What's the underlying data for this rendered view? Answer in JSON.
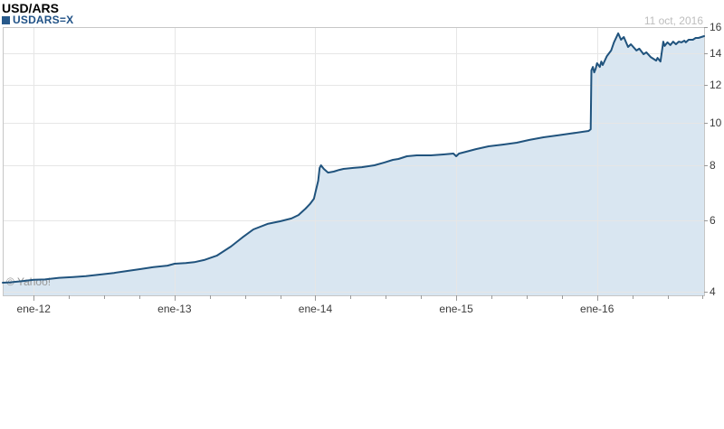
{
  "header": {
    "title": "USD/ARS",
    "date": "11 oct, 2016"
  },
  "legend": {
    "symbol": "USDARS=X"
  },
  "watermark": "© Yahoo!",
  "colors": {
    "line": "#20537d",
    "fill": "#d9e6f1",
    "grid": "#e6e6e6",
    "frame": "#c6c6c6",
    "tick": "#999999",
    "axis_text": "#3c3c3c",
    "title_text": "#000000",
    "legend_text": "#1f5186",
    "legend_swatch": "#27598a",
    "date_text": "#bdbdbd",
    "watermark_text": "#979797"
  },
  "chart_data": {
    "type": "area",
    "title": "USD/ARS",
    "legend_entries": [
      "USDARS=X"
    ],
    "x_axis": {
      "range_years": [
        2011.78,
        2016.76
      ],
      "ticks": [
        {
          "label": "ene-12",
          "year": 2012
        },
        {
          "label": "ene-13",
          "year": 2013
        },
        {
          "label": "ene-14",
          "year": 2014
        },
        {
          "label": "ene-15",
          "year": 2015
        },
        {
          "label": "ene-16",
          "year": 2016
        }
      ],
      "minor_tick_step_years": 0.25
    },
    "y_axis": {
      "position": "right",
      "scale": "log",
      "ticks": [
        16,
        14,
        12,
        10,
        8,
        6,
        4
      ],
      "range": [
        3.93,
        16
      ]
    },
    "series": [
      {
        "name": "USDARS=X",
        "points": [
          [
            2011.78,
            4.21
          ],
          [
            2011.83,
            4.22
          ],
          [
            2011.92,
            4.25
          ],
          [
            2012.0,
            4.28
          ],
          [
            2012.08,
            4.29
          ],
          [
            2012.18,
            4.33
          ],
          [
            2012.28,
            4.35
          ],
          [
            2012.37,
            4.37
          ],
          [
            2012.47,
            4.41
          ],
          [
            2012.57,
            4.45
          ],
          [
            2012.66,
            4.5
          ],
          [
            2012.76,
            4.55
          ],
          [
            2012.85,
            4.6
          ],
          [
            2012.95,
            4.64
          ],
          [
            2013.0,
            4.69
          ],
          [
            2013.08,
            4.71
          ],
          [
            2013.14,
            4.73
          ],
          [
            2013.21,
            4.79
          ],
          [
            2013.3,
            4.91
          ],
          [
            2013.4,
            5.17
          ],
          [
            2013.48,
            5.44
          ],
          [
            2013.56,
            5.7
          ],
          [
            2013.66,
            5.88
          ],
          [
            2013.75,
            5.97
          ],
          [
            2013.83,
            6.06
          ],
          [
            2013.88,
            6.17
          ],
          [
            2013.93,
            6.38
          ],
          [
            2013.96,
            6.53
          ],
          [
            2013.99,
            6.72
          ],
          [
            2014.0,
            6.94
          ],
          [
            2014.02,
            7.38
          ],
          [
            2014.03,
            7.89
          ],
          [
            2014.04,
            8.0
          ],
          [
            2014.06,
            7.85
          ],
          [
            2014.09,
            7.7
          ],
          [
            2014.13,
            7.74
          ],
          [
            2014.17,
            7.81
          ],
          [
            2014.2,
            7.85
          ],
          [
            2014.27,
            7.89
          ],
          [
            2014.33,
            7.92
          ],
          [
            2014.42,
            8.0
          ],
          [
            2014.49,
            8.12
          ],
          [
            2014.55,
            8.23
          ],
          [
            2014.59,
            8.27
          ],
          [
            2014.65,
            8.39
          ],
          [
            2014.72,
            8.43
          ],
          [
            2014.82,
            8.43
          ],
          [
            2014.91,
            8.47
          ],
          [
            2014.98,
            8.51
          ],
          [
            2015.0,
            8.39
          ],
          [
            2015.02,
            8.51
          ],
          [
            2015.07,
            8.59
          ],
          [
            2015.14,
            8.71
          ],
          [
            2015.23,
            8.84
          ],
          [
            2015.33,
            8.92
          ],
          [
            2015.43,
            9.01
          ],
          [
            2015.52,
            9.14
          ],
          [
            2015.62,
            9.27
          ],
          [
            2015.72,
            9.36
          ],
          [
            2015.81,
            9.45
          ],
          [
            2015.9,
            9.54
          ],
          [
            2015.94,
            9.58
          ],
          [
            2015.955,
            9.67
          ],
          [
            2015.96,
            12.88
          ],
          [
            2015.97,
            13.1
          ],
          [
            2015.98,
            12.76
          ],
          [
            2015.99,
            12.99
          ],
          [
            2016.0,
            13.34
          ],
          [
            2016.02,
            13.1
          ],
          [
            2016.03,
            13.45
          ],
          [
            2016.04,
            13.22
          ],
          [
            2016.07,
            13.81
          ],
          [
            2016.1,
            14.2
          ],
          [
            2016.12,
            14.8
          ],
          [
            2016.15,
            15.5
          ],
          [
            2016.17,
            15.0
          ],
          [
            2016.19,
            15.21
          ],
          [
            2016.22,
            14.46
          ],
          [
            2016.24,
            14.66
          ],
          [
            2016.28,
            14.2
          ],
          [
            2016.3,
            14.33
          ],
          [
            2016.33,
            13.94
          ],
          [
            2016.35,
            14.07
          ],
          [
            2016.38,
            13.75
          ],
          [
            2016.42,
            13.51
          ],
          [
            2016.43,
            13.69
          ],
          [
            2016.45,
            13.45
          ],
          [
            2016.47,
            14.86
          ],
          [
            2016.48,
            14.53
          ],
          [
            2016.5,
            14.8
          ],
          [
            2016.52,
            14.6
          ],
          [
            2016.54,
            14.86
          ],
          [
            2016.56,
            14.66
          ],
          [
            2016.58,
            14.86
          ],
          [
            2016.6,
            14.8
          ],
          [
            2016.62,
            14.93
          ],
          [
            2016.63,
            14.8
          ],
          [
            2016.65,
            15.0
          ],
          [
            2016.68,
            15.0
          ],
          [
            2016.7,
            15.14
          ],
          [
            2016.72,
            15.14
          ],
          [
            2016.74,
            15.21
          ],
          [
            2016.76,
            15.28
          ]
        ]
      }
    ]
  }
}
